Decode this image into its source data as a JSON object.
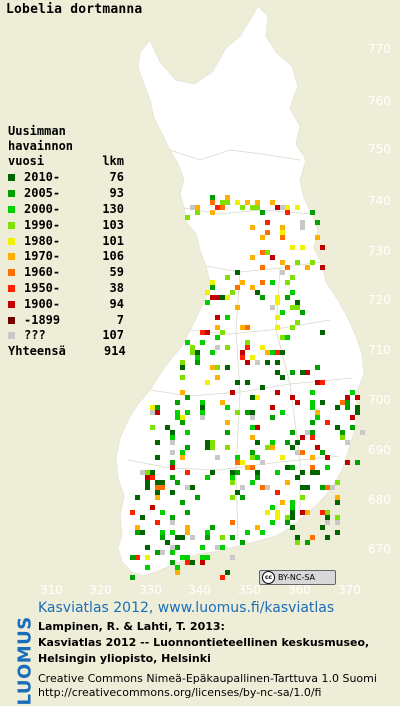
{
  "title": "Lobelia dortmanna",
  "legend": {
    "header": [
      "Uusimman",
      "havainnon"
    ],
    "header_vuosi": "vuosi",
    "header_lkm": "lkm",
    "rows": [
      {
        "year": "2010-",
        "count": "76",
        "color": "#006400"
      },
      {
        "year": "2005-",
        "count": "93",
        "color": "#00a000"
      },
      {
        "year": "2000-",
        "count": "130",
        "color": "#00d000"
      },
      {
        "year": "1990-",
        "count": "103",
        "color": "#80e000"
      },
      {
        "year": "1980-",
        "count": "101",
        "color": "#f0f000"
      },
      {
        "year": "1970-",
        "count": "106",
        "color": "#ffb000"
      },
      {
        "year": "1960-",
        "count": "59",
        "color": "#ff7000"
      },
      {
        "year": "1950-",
        "count": "38",
        "color": "#ff2000"
      },
      {
        "year": "1900-",
        "count": "94",
        "color": "#c00000"
      },
      {
        "year": "-1899",
        "count": "7",
        "color": "#700000"
      },
      {
        "year": "???",
        "count": "107",
        "color": "#c8c8c8"
      }
    ],
    "total_label": "Yhteensä",
    "total_count": "914"
  },
  "x_ticks": [
    "310",
    "320",
    "330",
    "340",
    "350",
    "360",
    "370"
  ],
  "y_ticks": [
    "770",
    "760",
    "750",
    "740",
    "730",
    "720",
    "710",
    "700",
    "690",
    "680",
    "670"
  ],
  "license_badge": "BY-NC-SA",
  "footer": {
    "logo": "LUOMUS",
    "link": "Kasviatlas 2012, www.luomus.fi/kasviatlas",
    "cite1": "Lampinen, R. & Lahti, T. 2013:",
    "cite2": "Kasviatlas 2012 -- Luonnontieteellinen keskusmuseo,",
    "cite3": "Helsingin yliopisto, Helsinki",
    "lic1": "Creative Commons Nimeä-Epäkaupallinen-Tarttuva 1.0 Suomi",
    "lic2": "http://creativecommons.org/licenses/by-nc-sa/1.0/fi"
  },
  "colors": {
    "background": "#eeeed8",
    "land": "#ffffff",
    "border": "#cfcfbf",
    "logo_blue": "#1a6db8"
  }
}
